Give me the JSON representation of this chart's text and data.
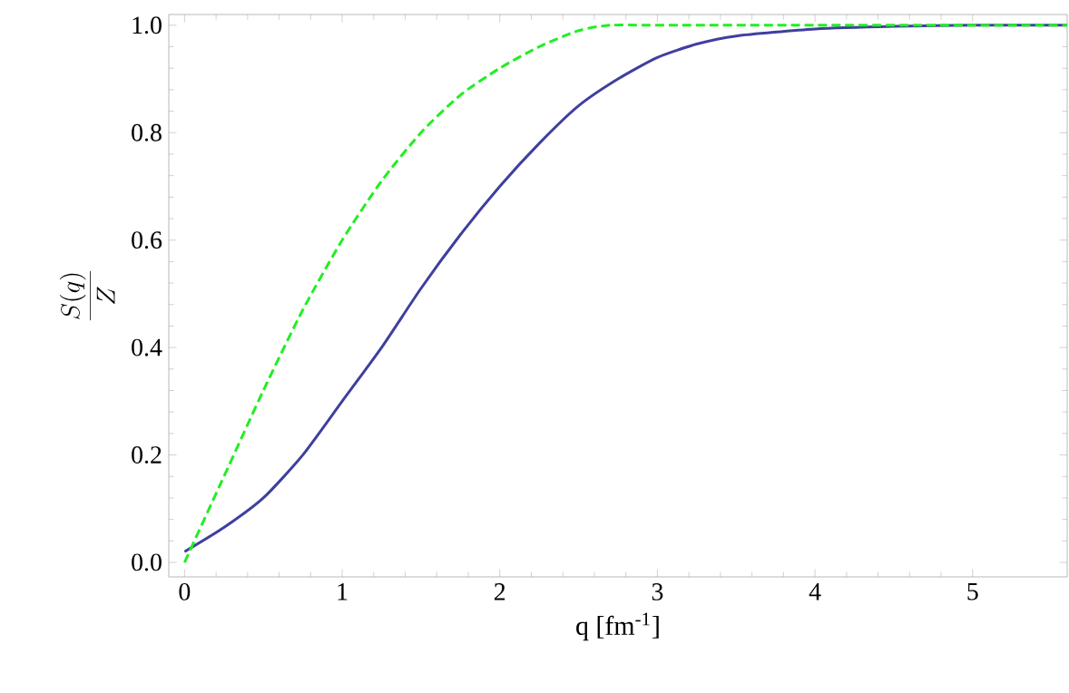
{
  "chart_data": {
    "type": "line",
    "xlabel": "q [fm$^{-1}$]",
    "ylabel": "\\frac{S(q)}{Z}",
    "xlim": [
      -0.1,
      5.6
    ],
    "ylim": [
      -0.027,
      1.02
    ],
    "xticks": [
      0,
      1,
      2,
      3,
      4,
      5
    ],
    "yticks": [
      {
        "value": 0,
        "label": "0.0"
      },
      {
        "value": 0.2,
        "label": "0.2"
      },
      {
        "value": 0.4,
        "label": "0.4"
      },
      {
        "value": 0.6,
        "label": "0.6"
      },
      {
        "value": 0.8,
        "label": "0.8"
      },
      {
        "value": 1,
        "label": "1.0"
      }
    ],
    "marker": "none",
    "series": [
      {
        "color": "#3f3f9f",
        "line_style": "solid",
        "x": [
          0,
          0.25,
          0.5,
          0.75,
          1,
          1.25,
          1.5,
          1.75,
          2,
          2.25,
          2.5,
          2.75,
          3,
          3.25,
          3.5,
          4,
          4.5,
          5,
          5.6
        ],
        "values": [
          0.02,
          0.065,
          0.12,
          0.2,
          0.3,
          0.4,
          0.51,
          0.61,
          0.7,
          0.78,
          0.85,
          0.9,
          0.94,
          0.965,
          0.98,
          0.993,
          0.998,
          1.0,
          1.0
        ]
      },
      {
        "color": "#22ee22",
        "line_style": "dashed",
        "x": [
          0,
          0.25,
          0.5,
          0.75,
          1,
          1.25,
          1.5,
          1.75,
          2,
          2.25,
          2.5,
          2.7,
          3,
          4,
          5,
          5.6
        ],
        "values": [
          0,
          0.16,
          0.32,
          0.47,
          0.6,
          0.71,
          0.8,
          0.87,
          0.92,
          0.96,
          0.99,
          1.0,
          1.0,
          1.0,
          1.0,
          1.0
        ]
      }
    ]
  }
}
